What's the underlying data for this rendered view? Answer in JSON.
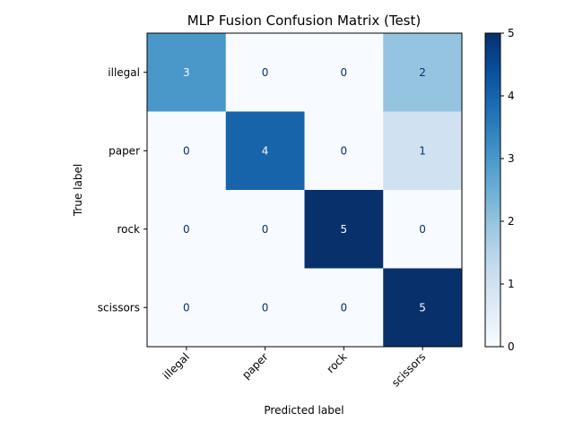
{
  "chart_data": {
    "type": "heatmap",
    "title": "MLP Fusion Confusion Matrix (Test)",
    "xlabel": "Predicted label",
    "ylabel": "True label",
    "x_categories": [
      "illegal",
      "paper",
      "rock",
      "scissors"
    ],
    "y_categories": [
      "illegal",
      "paper",
      "rock",
      "scissors"
    ],
    "values": [
      [
        3,
        0,
        0,
        2
      ],
      [
        0,
        4,
        0,
        1
      ],
      [
        0,
        0,
        5,
        0
      ],
      [
        0,
        0,
        0,
        5
      ]
    ],
    "colormap": "Blues",
    "colorbar": {
      "min": 0,
      "max": 5,
      "ticks": [
        0,
        1,
        2,
        3,
        4,
        5
      ]
    },
    "colors": {
      "low": "#f7fbff",
      "high": "#08306b",
      "text_on_light": "#08306b",
      "text_on_dark": "#f7fbff"
    }
  }
}
